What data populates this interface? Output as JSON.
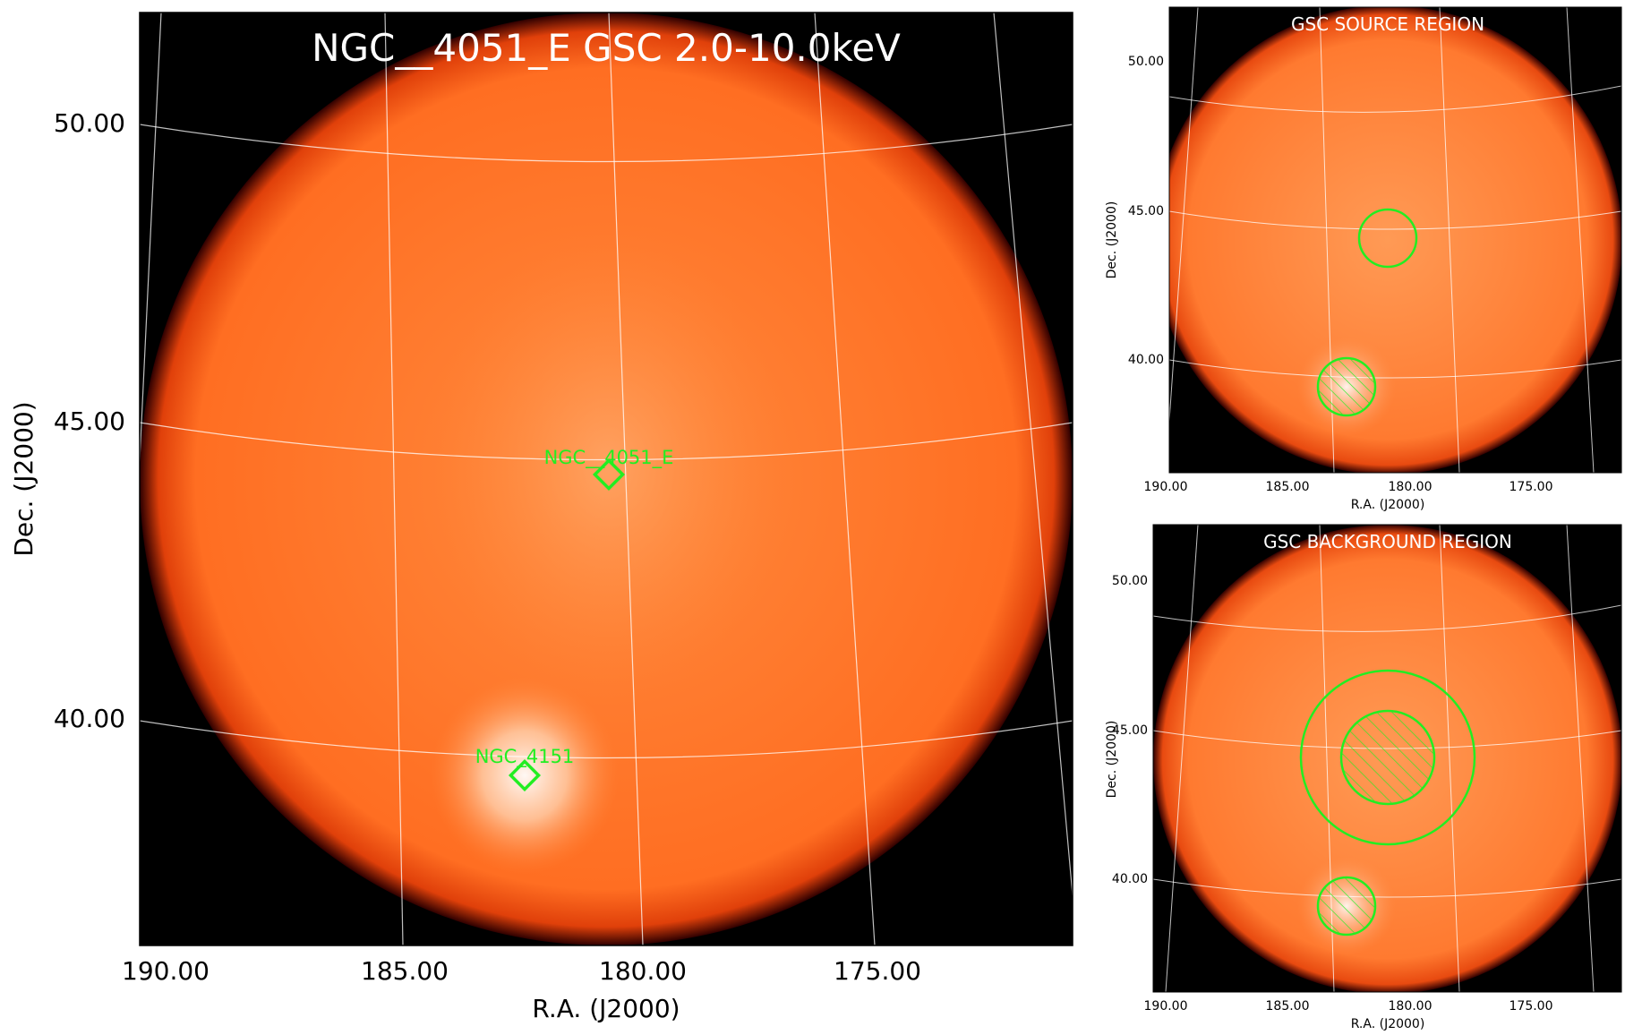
{
  "main": {
    "title": "NGC__4051_E GSC 2.0-10.0keV",
    "xlabel": "R.A. (J2000)",
    "ylabel": "Dec. (J2000)",
    "x_ticks": [
      "190.00",
      "185.00",
      "180.00",
      "175.00"
    ],
    "y_ticks": [
      "50.00",
      "45.00",
      "40.00"
    ],
    "markers": [
      {
        "label": "NGC__4051_E"
      },
      {
        "label": "NGC_4151"
      }
    ]
  },
  "source_panel": {
    "title": "GSC SOURCE REGION",
    "xlabel": "R.A. (J2000)",
    "ylabel": "Dec. (J2000)",
    "x_ticks": [
      "190.00",
      "185.00",
      "180.00",
      "175.00"
    ],
    "y_ticks": [
      "50.00",
      "45.00",
      "40.00"
    ]
  },
  "background_panel": {
    "title": "GSC BACKGROUND REGION",
    "xlabel": "R.A. (J2000)",
    "ylabel": "Dec. (J2000)",
    "x_ticks": [
      "190.00",
      "185.00",
      "180.00",
      "175.00"
    ],
    "y_ticks": [
      "50.00",
      "45.00",
      "40.00"
    ]
  },
  "colors": {
    "disk": "#ff6a1a",
    "marker": "#22ee22",
    "background": "#000000"
  }
}
